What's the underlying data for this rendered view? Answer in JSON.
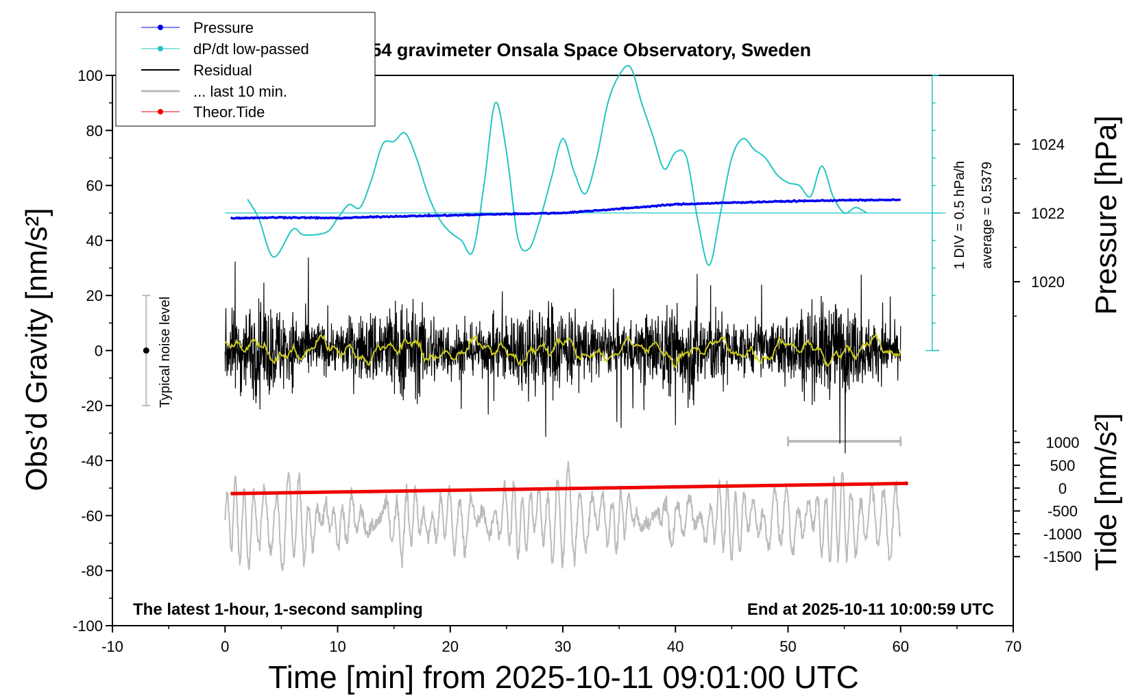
{
  "chart_data": {
    "type": "line",
    "title": "SCG_054 gravimeter Onsala Space Observatory, Sweden",
    "xlabel": "Time [min] from 2025-10-11 09:01:00 UTC",
    "ylabel_left": "Obs’d Gravity [nm/s²]",
    "ylabel_right_pressure": "Pressure [hPa]",
    "ylabel_right_tide": "Tide [nm/s²]",
    "xlim": [
      -10,
      70
    ],
    "ylim_left": [
      -100,
      100
    ],
    "pressure_ylim": [
      1018,
      1026
    ],
    "tide_ylim": [
      -1500,
      1500
    ],
    "x_ticks": [
      "-10",
      "0",
      "10",
      "20",
      "30",
      "40",
      "50",
      "60",
      "70"
    ],
    "y_ticks_left": [
      "100",
      "80",
      "60",
      "40",
      "20",
      "0",
      "-20",
      "-40",
      "-60",
      "-80",
      "-100"
    ],
    "pressure_ticks": [
      "1024",
      "1022",
      "1020"
    ],
    "tide_ticks": [
      "1000",
      "500",
      "0",
      "-500",
      "-1000",
      "-1500"
    ],
    "legend": {
      "position": "top-left",
      "entries": [
        "Pressure",
        "dP/dt low-passed",
        "Residual",
        "... last 10 min.",
        "Theor.Tide"
      ]
    },
    "annotations": {
      "bottom_left": "The latest 1-hour, 1-second sampling",
      "bottom_right": "End at 2025-10-11 10:00:59 UTC",
      "dpdt_scale": "1 DIV = 0.5 hPa/h",
      "dpdt_average": "average = 0.5379",
      "noise_label": "Typical noise level"
    },
    "colors": {
      "pressure": "#0000ee",
      "dpdt": "#22c4c4",
      "residual": "#000000",
      "last10": "#bbbbbb",
      "tide": "#ee0000",
      "smoothed": "#cccc22"
    },
    "series": [
      {
        "name": "Pressure",
        "unit": "hPa",
        "x": [
          0.5,
          5,
          10,
          15,
          20,
          25,
          30,
          35,
          40,
          45,
          50,
          55,
          60
        ],
        "values": [
          1021.85,
          1021.87,
          1021.85,
          1021.9,
          1021.93,
          1021.97,
          1022.0,
          1022.12,
          1022.25,
          1022.3,
          1022.34,
          1022.37,
          1022.38
        ]
      },
      {
        "name": "dP/dt low-passed",
        "unit": "gravity-axis units",
        "x": [
          2,
          3,
          4.3,
          6,
          7,
          9,
          10,
          11,
          12,
          13,
          14,
          15,
          16,
          17,
          18,
          19,
          20,
          21,
          22,
          23,
          24,
          25,
          26,
          27,
          28,
          29,
          30,
          31,
          32,
          33,
          34,
          35,
          36,
          37,
          38,
          39,
          40,
          41,
          42,
          43,
          44,
          45,
          46,
          47,
          48,
          49,
          50,
          51,
          52,
          53,
          54,
          55,
          56,
          57
        ],
        "values": [
          55,
          48,
          34,
          44,
          42,
          43,
          48,
          53,
          52,
          62,
          75,
          76,
          79,
          70,
          57,
          48,
          43,
          40,
          36,
          60,
          90,
          72,
          41,
          37,
          48,
          63,
          77,
          65,
          57,
          70,
          90,
          100,
          103,
          90,
          78,
          66,
          72,
          70,
          47,
          31,
          50,
          70,
          77,
          73,
          70,
          64,
          61,
          60,
          56,
          67,
          56,
          50,
          52,
          50
        ]
      },
      {
        "name": "Residual",
        "unit": "nm/s²",
        "x": [
          0,
          10,
          20,
          30,
          40,
          50,
          60
        ],
        "values": [
          0,
          1,
          0,
          1,
          0,
          1,
          0
        ]
      },
      {
        "name": "... last 10 min.",
        "unit": "nm/s²",
        "x": [
          0,
          10,
          20,
          30,
          40,
          50,
          60
        ],
        "values": [
          -63,
          -62,
          -62,
          -61,
          -61,
          -62,
          -61
        ]
      },
      {
        "name": "Theor.Tide",
        "unit": "nm/s²",
        "x": [
          0.5,
          60.5
        ],
        "values": [
          -52,
          -48.3
        ]
      }
    ],
    "last10_window": [
      50,
      60
    ],
    "noise_bar": {
      "x": -7,
      "y": [
        -20,
        20
      ],
      "center": 0
    },
    "dpdt_baseline": 50
  }
}
